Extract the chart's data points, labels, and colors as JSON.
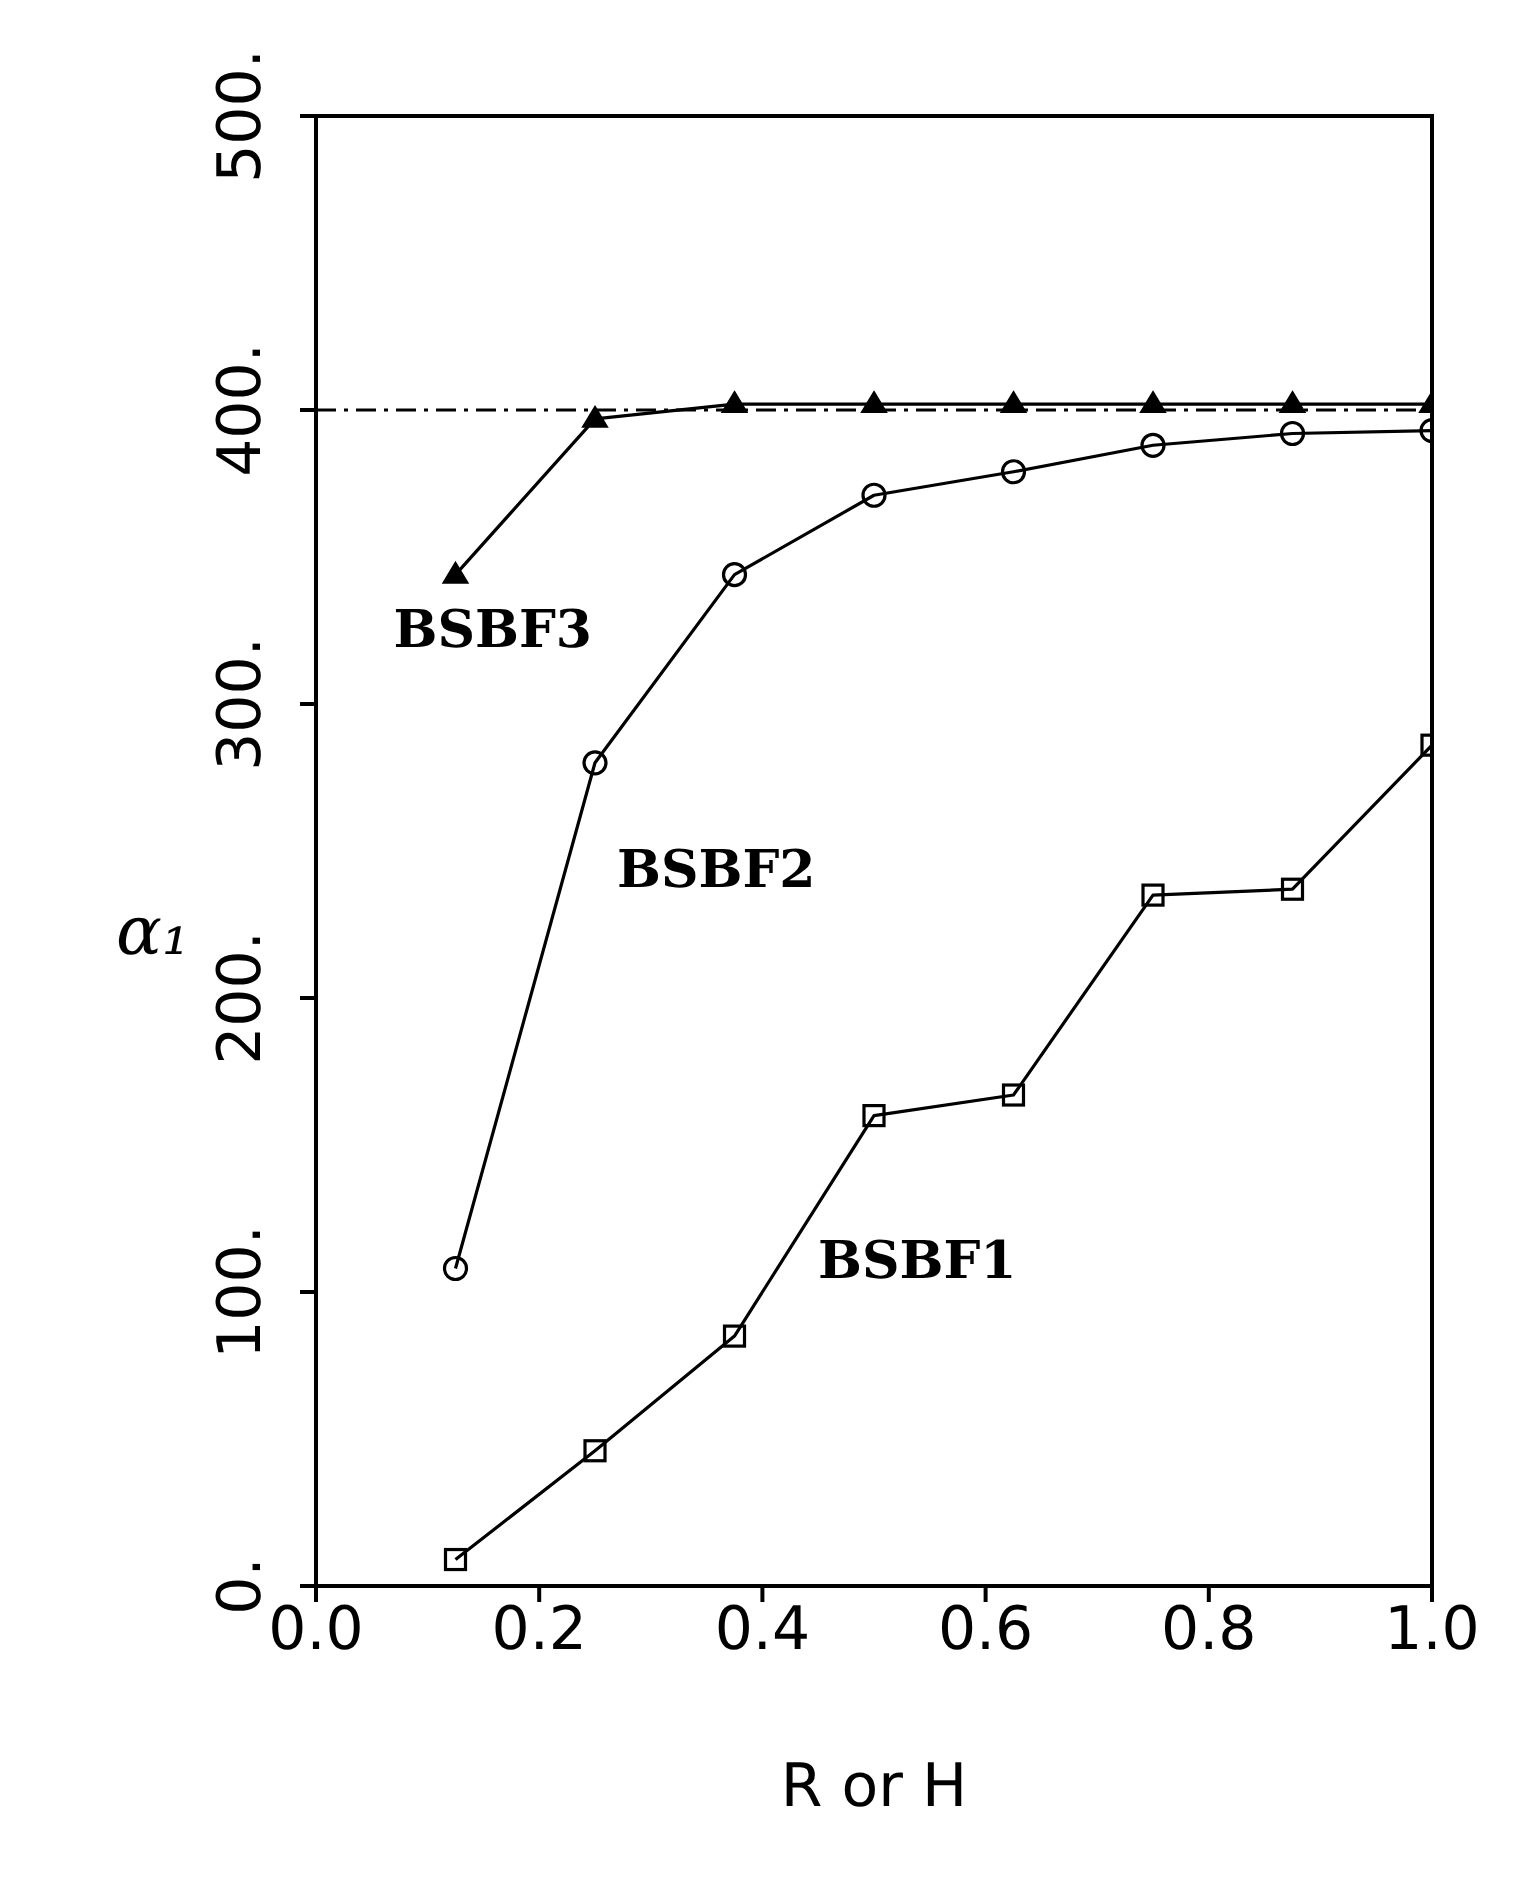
{
  "chart_data": {
    "type": "line",
    "xlabel": "R or H",
    "ylabel": "α₁",
    "x": [
      0.125,
      0.25,
      0.375,
      0.5,
      0.625,
      0.75,
      0.875,
      1.0
    ],
    "series": [
      {
        "name": "BSBF1",
        "color": "#000000",
        "marker": "square",
        "values": [
          9,
          46,
          85,
          160,
          167,
          235,
          237,
          286
        ]
      },
      {
        "name": "BSBF2",
        "color": "#000000",
        "marker": "circle",
        "values": [
          108,
          280,
          344,
          371,
          379,
          388,
          392,
          393
        ]
      },
      {
        "name": "BSBF3",
        "color": "#000000",
        "marker": "triangle",
        "values": [
          344,
          397,
          402,
          402,
          402,
          402,
          402,
          402
        ]
      }
    ],
    "xlim": [
      0,
      1
    ],
    "xticks": [
      {
        "value": 0,
        "label": "0.0"
      },
      {
        "value": 0.2,
        "label": "0.2"
      },
      {
        "value": 0.4,
        "label": "0.4"
      },
      {
        "value": 0.6,
        "label": "0.6"
      },
      {
        "value": 0.8,
        "label": "0.8"
      },
      {
        "value": 1,
        "label": "1.0"
      }
    ],
    "ylim": [
      0,
      500
    ],
    "yticks": [
      {
        "value": 0,
        "label": "0."
      },
      {
        "value": 100,
        "label": "100."
      },
      {
        "value": 200,
        "label": "200."
      },
      {
        "value": 300,
        "label": "300."
      },
      {
        "value": 400,
        "label": "400."
      },
      {
        "value": 500,
        "label": "500."
      }
    ],
    "ref_lines": [
      {
        "axis": "y",
        "value": 400,
        "line_style": "dashed",
        "color": "#000000"
      }
    ],
    "grid": false
  }
}
